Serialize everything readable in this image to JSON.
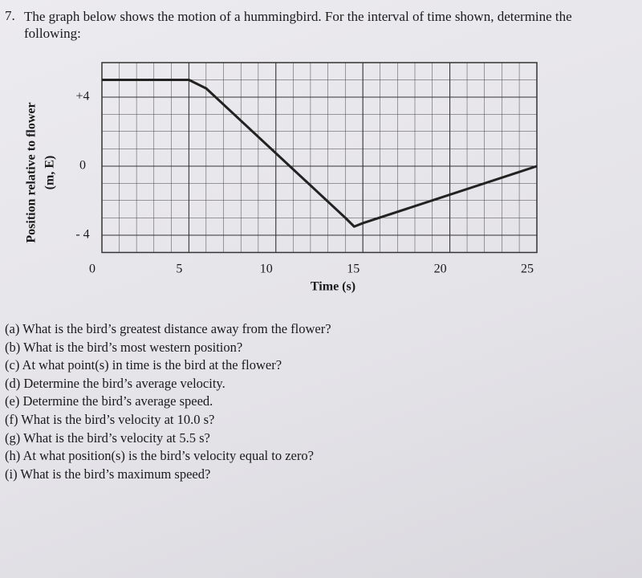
{
  "number": "7.",
  "prompt": "The graph below shows the motion of a hummingbird.  For the interval of time shown, determine the following:",
  "chart_data": {
    "type": "line",
    "xlabel": "Time (s)",
    "ylabel": [
      "Position relative to flower",
      "(m, E)"
    ],
    "x": [
      0,
      5,
      6,
      14,
      14.5,
      15,
      25
    ],
    "values": [
      5,
      5,
      4.5,
      -3,
      -3.5,
      -3.3,
      0
    ],
    "color": "#222222",
    "xlim": [
      0,
      25
    ],
    "ylim": [
      -5,
      6
    ],
    "xticks": [
      0,
      5,
      10,
      15,
      20,
      25
    ],
    "yticks": [
      {
        "value": 4,
        "label": "+4"
      },
      0,
      {
        "value": -4,
        "label": "- 4"
      }
    ],
    "grid": true
  },
  "questions": [
    "(a) What is the bird’s greatest distance away from the flower?",
    "(b) What is the bird’s most western position?",
    "(c) At what point(s) in time is the bird at the flower?",
    "(d) Determine the bird’s average velocity.",
    "(e) Determine the bird’s average speed.",
    "(f) What is the bird’s velocity at 10.0 s?",
    "(g) What is the bird’s velocity at 5.5 s?",
    "(h) At what position(s) is the bird’s velocity equal to zero?",
    "(i) What is the bird’s maximum speed?"
  ]
}
